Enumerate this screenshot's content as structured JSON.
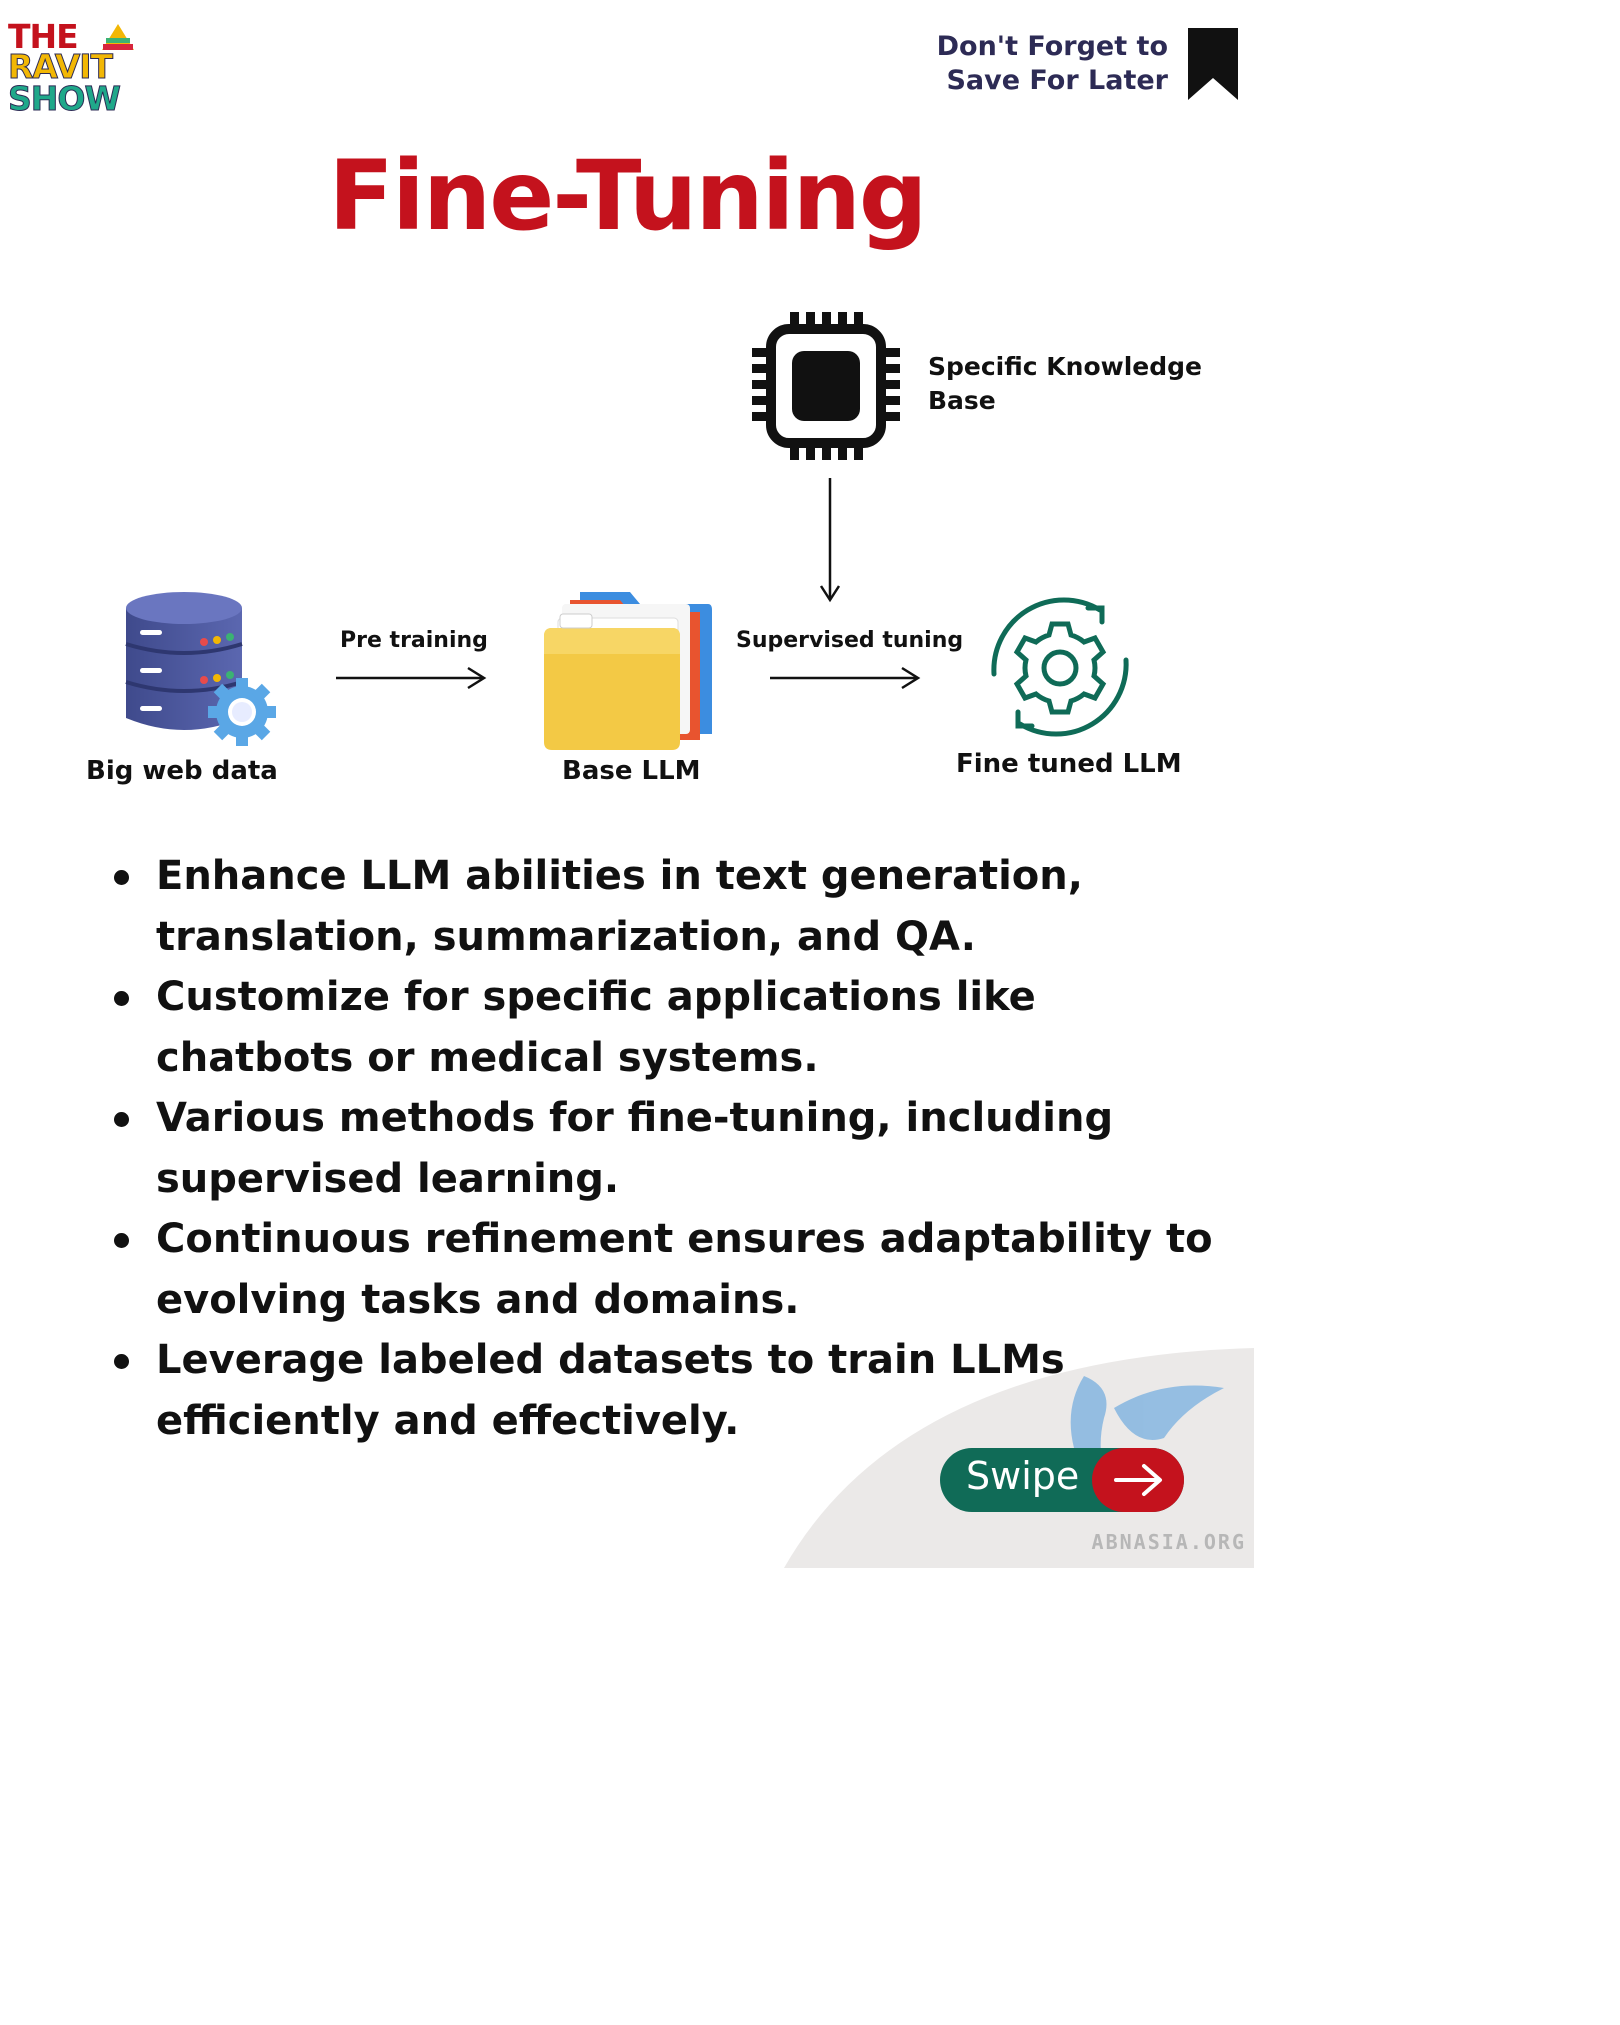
{
  "logo": {
    "line1": "THE",
    "line2": "RAVIT",
    "line3": "SHOW"
  },
  "save_prompt": {
    "line1": "Don't Forget to",
    "line2": "Save For Later"
  },
  "title": "Fine-Tuning",
  "diagram": {
    "knowledge_label_line1": "Specific Knowledge",
    "knowledge_label_line2": "Base",
    "source_label": "Big web data",
    "edge1_label": "Pre training",
    "base_label": "Base LLM",
    "edge2_label": "Supervised tuning",
    "result_label": "Fine tuned LLM"
  },
  "bullets": [
    {
      "line1": "Enhance LLM abilities in text generation,",
      "line2": "translation, summarization, and QA."
    },
    {
      "line1": "Customize for specific applications like",
      "line2": "chatbots or medical systems."
    },
    {
      "line1": "Various methods for fine-tuning, including",
      "line2": "supervised learning."
    },
    {
      "line1": "Continuous refinement ensures adaptability to",
      "line2": "evolving tasks and domains."
    },
    {
      "line1": "Leverage labeled datasets to train LLMs",
      "line2": "efficiently and effectively."
    }
  ],
  "swipe_label": "Swipe",
  "watermark": "ABNASIA.ORG",
  "colors": {
    "title_red": "#c4121d",
    "swipe_green": "#106b57",
    "navy_text": "#2d2b55",
    "gear_teal": "#0f6b57"
  },
  "icons": {
    "knowledge": "chip-icon",
    "source": "database-gear-icon",
    "base": "folder-icon",
    "result": "gear-refresh-icon",
    "save": "bookmark-icon",
    "swipe": "arrow-right-icon"
  }
}
